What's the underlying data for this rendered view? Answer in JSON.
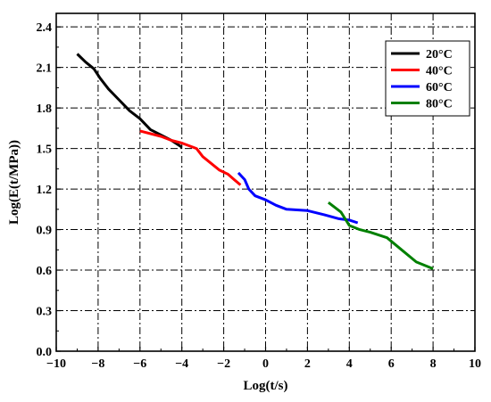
{
  "chart_data": {
    "type": "line",
    "xlabel": "Log(t/s)",
    "ylabel": "Log(E(t/MPa))",
    "xlim": [
      -10,
      10
    ],
    "ylim": [
      0.0,
      2.5
    ],
    "xticks": [
      -10,
      -8,
      -6,
      -4,
      -2,
      0,
      2,
      4,
      6,
      8,
      10
    ],
    "xtick_labels": [
      "−10",
      "−8",
      "−6",
      "−4",
      "−2",
      "0",
      "2",
      "4",
      "6",
      "8",
      "10"
    ],
    "yticks": [
      0.0,
      0.3,
      0.6,
      0.9,
      1.2,
      1.5,
      1.8,
      2.1,
      2.4
    ],
    "ytick_labels": [
      "0.0",
      "0.3",
      "0.6",
      "0.9",
      "1.2",
      "1.5",
      "1.8",
      "2.1",
      "2.4"
    ],
    "grid": true,
    "legend_position": "top-right",
    "series": [
      {
        "name": "20°C",
        "color": "#000000",
        "x": [
          -9.0,
          -8.6,
          -8.2,
          -7.9,
          -7.5,
          -7.0,
          -6.5,
          -6.0,
          -5.5,
          -5.0,
          -4.5,
          -4.0
        ],
        "y": [
          2.2,
          2.14,
          2.09,
          2.02,
          1.94,
          1.86,
          1.78,
          1.72,
          1.64,
          1.6,
          1.56,
          1.51
        ]
      },
      {
        "name": "40°C",
        "color": "#ff0000",
        "x": [
          -6.0,
          -5.0,
          -4.5,
          -4.0,
          -3.3,
          -3.0,
          -2.6,
          -2.2,
          -1.8,
          -1.5,
          -1.2
        ],
        "y": [
          1.63,
          1.59,
          1.56,
          1.54,
          1.5,
          1.44,
          1.39,
          1.34,
          1.31,
          1.27,
          1.23
        ]
      },
      {
        "name": "60°C",
        "color": "#0000ff",
        "x": [
          -1.3,
          -1.0,
          -0.8,
          -0.5,
          0.0,
          0.5,
          1.0,
          2.0,
          2.8,
          3.5,
          4.0,
          4.4
        ],
        "y": [
          1.32,
          1.27,
          1.2,
          1.15,
          1.12,
          1.08,
          1.05,
          1.04,
          1.01,
          0.98,
          0.97,
          0.95
        ]
      },
      {
        "name": "80°C",
        "color": "#008000",
        "x": [
          3.0,
          3.6,
          4.0,
          4.5,
          5.0,
          5.8,
          6.5,
          7.2,
          8.0
        ],
        "y": [
          1.1,
          1.03,
          0.93,
          0.9,
          0.88,
          0.84,
          0.75,
          0.66,
          0.61
        ]
      }
    ]
  }
}
